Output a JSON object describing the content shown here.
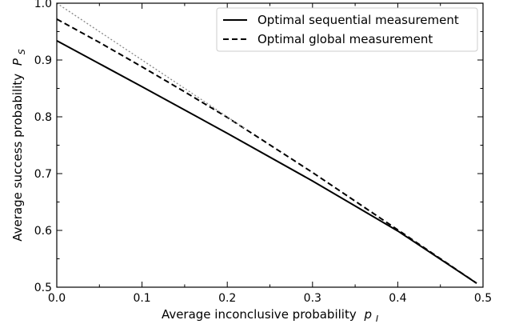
{
  "chart_data": {
    "type": "line",
    "title": "",
    "xlabel": "Average inconclusive probability",
    "xlabel_symbol": "p",
    "xlabel_subscript": "I",
    "ylabel": "Average success probability",
    "ylabel_symbol": "P",
    "ylabel_subscript": "S",
    "xlim": [
      0.0,
      0.5
    ],
    "ylim": [
      0.5,
      1.0
    ],
    "x_ticks": [
      "0.0",
      "0.1",
      "0.2",
      "0.3",
      "0.4",
      "0.5"
    ],
    "y_ticks": [
      "0.5",
      "0.6",
      "0.7",
      "0.8",
      "0.9",
      "1.0"
    ],
    "grid": false,
    "legend_position": "top-right",
    "series": [
      {
        "name": "Optimal sequential measurement",
        "style": "solid",
        "color": "#000000",
        "x": [
          0.0,
          0.1,
          0.2,
          0.3,
          0.4,
          0.4925
        ],
        "y": [
          0.934,
          0.853,
          0.771,
          0.687,
          0.599,
          0.507
        ]
      },
      {
        "name": "Optimal global measurement",
        "style": "dashed",
        "color": "#000000",
        "x": [
          0.0,
          0.05,
          0.1,
          0.15,
          0.2,
          0.3,
          0.4,
          0.4925
        ],
        "y": [
          0.972,
          0.931,
          0.888,
          0.844,
          0.799,
          0.702,
          0.601,
          0.507
        ]
      },
      {
        "name": "",
        "style": "dotted",
        "color": "#888888",
        "x": [
          0.0,
          0.22
        ],
        "y": [
          1.0,
          0.78
        ]
      }
    ]
  }
}
